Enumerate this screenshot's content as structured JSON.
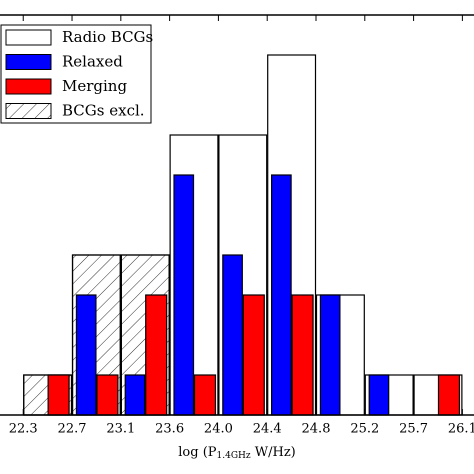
{
  "chart_data": {
    "type": "histogram",
    "x_label": {
      "text": "log (P",
      "sub": "1.4GHz",
      "tail": " W/Hz)"
    },
    "bins": [
      22.3,
      22.72,
      23.14,
      23.56,
      23.98,
      24.4,
      24.82,
      25.24,
      25.66,
      26.08
    ],
    "series": [
      {
        "name": "Radio BCGs",
        "color": "#ffffff",
        "values": [
          1,
          4,
          4,
          7,
          7,
          9,
          3,
          1,
          1
        ]
      },
      {
        "name": "Relaxed",
        "color": "#0000ff",
        "values": [
          0,
          3,
          1,
          6,
          4,
          6,
          3,
          1,
          0
        ]
      },
      {
        "name": "Merging",
        "color": "#ff0000",
        "values": [
          1,
          1,
          3,
          1,
          3,
          3,
          0,
          0,
          1
        ]
      },
      {
        "name": "BCGs excl.",
        "color": "none",
        "hatch": true,
        "values": [
          1,
          4,
          4,
          0,
          0,
          0,
          0,
          0,
          0
        ]
      }
    ],
    "xlim": [
      22.1,
      26.18
    ],
    "ylim": [
      0,
      10
    ],
    "xticks": [
      {
        "value": 22.3,
        "label": "22.3"
      },
      {
        "value": 22.72,
        "label": "22.7"
      },
      {
        "value": 23.14,
        "label": "23.1"
      },
      {
        "value": 23.56,
        "label": "23.6"
      },
      {
        "value": 23.98,
        "label": "24.0"
      },
      {
        "value": 24.4,
        "label": "24.4"
      },
      {
        "value": 24.82,
        "label": "24.8"
      },
      {
        "value": 25.24,
        "label": "25.2"
      },
      {
        "value": 25.66,
        "label": "25.7"
      },
      {
        "value": 26.08,
        "label": "26.1"
      }
    ],
    "legend": "upper left"
  }
}
